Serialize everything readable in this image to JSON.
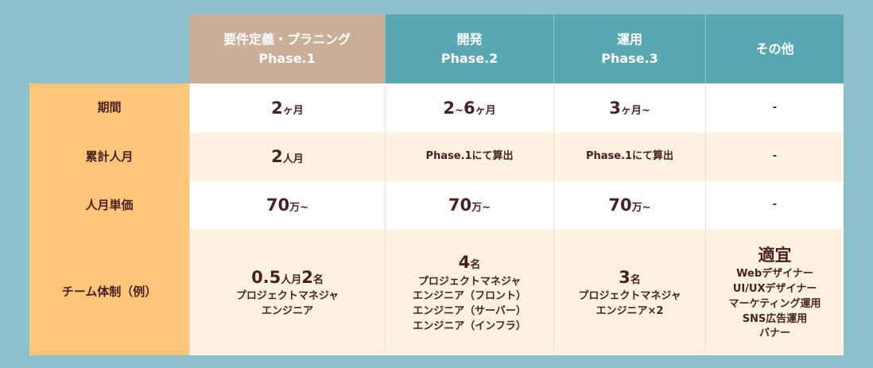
{
  "table": {
    "columns": [
      {
        "title": "要件定義・プラニング",
        "phase": "Phase.1"
      },
      {
        "title": "開発",
        "phase": "Phase.2"
      },
      {
        "title": "運用",
        "phase": "Phase.3"
      },
      {
        "title": "その他"
      }
    ],
    "rows": [
      {
        "label": "期間",
        "cells": [
          [
            [
              {
                "text": "2",
                "big": true
              },
              {
                "text": "ヶ月"
              }
            ]
          ],
          [
            [
              {
                "text": "2",
                "big": true
              },
              {
                "text": "~"
              },
              {
                "text": "6",
                "big": true
              },
              {
                "text": "ヶ月"
              }
            ]
          ],
          [
            [
              {
                "text": "3",
                "big": true
              },
              {
                "text": "ヶ月~"
              }
            ]
          ],
          [
            [
              {
                "text": "-"
              }
            ]
          ]
        ]
      },
      {
        "label": "累計人月",
        "cells": [
          [
            [
              {
                "text": "2",
                "big": true
              },
              {
                "text": "人月"
              }
            ]
          ],
          [
            [
              {
                "text": "Phase.1にて算出"
              }
            ]
          ],
          [
            [
              {
                "text": "Phase.1にて算出"
              }
            ]
          ],
          [
            [
              {
                "text": "-"
              }
            ]
          ]
        ]
      },
      {
        "label": "人月単価",
        "cells": [
          [
            [
              {
                "text": "70",
                "big": true
              },
              {
                "text": "万~"
              }
            ]
          ],
          [
            [
              {
                "text": "70",
                "big": true
              },
              {
                "text": "万~"
              }
            ]
          ],
          [
            [
              {
                "text": "70",
                "big": true
              },
              {
                "text": "万~"
              }
            ]
          ],
          [
            [
              {
                "text": "-"
              }
            ]
          ]
        ]
      },
      {
        "label": "チーム体制（例）",
        "cells": [
          [
            [
              {
                "text": "0.5",
                "big": true
              },
              {
                "text": "人月"
              },
              {
                "text": "2",
                "big": true
              },
              {
                "text": "名"
              }
            ],
            [
              {
                "text": "プロジェクトマネジャ"
              }
            ],
            [
              {
                "text": "エンジニア"
              }
            ]
          ],
          [
            [
              {
                "text": "4",
                "big": true
              },
              {
                "text": "名"
              }
            ],
            [
              {
                "text": "プロジェクトマネジャ"
              }
            ],
            [
              {
                "text": "エンジニア（フロント）"
              }
            ],
            [
              {
                "text": "エンジニア（サーバー）"
              }
            ],
            [
              {
                "text": "エンジニア（インフラ）"
              }
            ]
          ],
          [
            [
              {
                "text": "3",
                "big": true
              },
              {
                "text": "名"
              }
            ],
            [
              {
                "text": "プロジェクトマネジャ"
              }
            ],
            [
              {
                "text": "エンジニア×2"
              }
            ]
          ],
          [
            [
              {
                "text": "適宜",
                "big": true
              }
            ],
            [
              {
                "text": "Webデザイナー"
              }
            ],
            [
              {
                "text": "UI/UXデザイナー"
              }
            ],
            [
              {
                "text": "マーケティング運用"
              }
            ],
            [
              {
                "text": "SNS広告運用"
              }
            ],
            [
              {
                "text": "バナー"
              }
            ]
          ]
        ]
      }
    ]
  }
}
